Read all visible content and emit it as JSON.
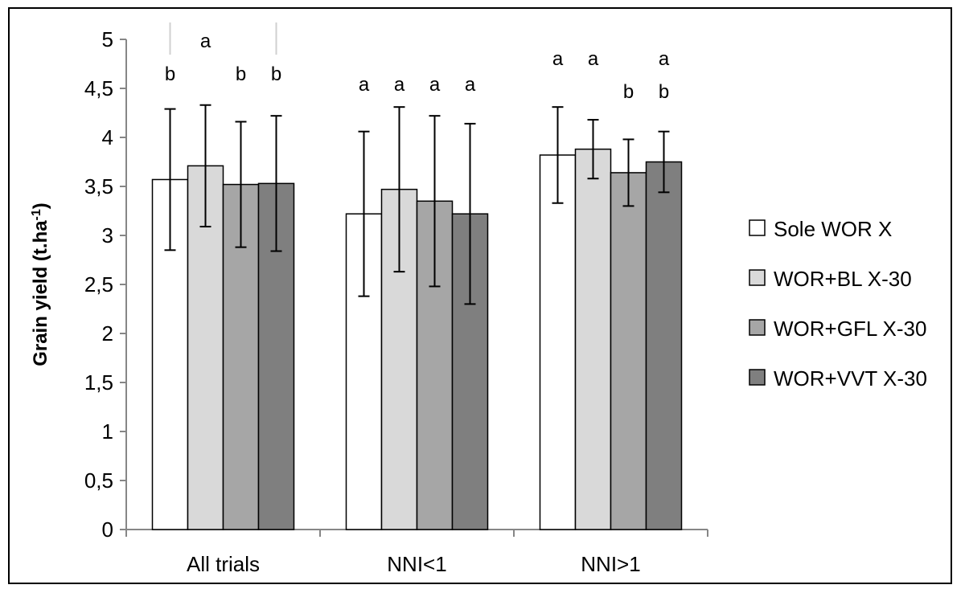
{
  "chart_data": {
    "type": "bar",
    "title": "",
    "xlabel": "",
    "ylabel": "Grain yield (t.ha",
    "ylabel_superscript": "-1",
    "ylabel_suffix": ")",
    "ylim": [
      0,
      5
    ],
    "yticks": [
      {
        "value": 0,
        "label": "0"
      },
      {
        "value": 0.5,
        "label": "0,5"
      },
      {
        "value": 1,
        "label": "1"
      },
      {
        "value": 1.5,
        "label": "1,5"
      },
      {
        "value": 2,
        "label": "2"
      },
      {
        "value": 2.5,
        "label": "2,5"
      },
      {
        "value": 3,
        "label": "3"
      },
      {
        "value": 3.5,
        "label": "3,5"
      },
      {
        "value": 4,
        "label": "4"
      },
      {
        "value": 4.5,
        "label": "4,5"
      },
      {
        "value": 5,
        "label": "5"
      }
    ],
    "categories": [
      "All trials",
      "NNI<1",
      "NNI>1"
    ],
    "grid": false,
    "legend_position": "right",
    "series": [
      {
        "name": "Sole WOR X",
        "color": "#ffffff",
        "values": [
          3.57,
          3.22,
          3.82
        ],
        "error": [
          0.72,
          0.84,
          0.49
        ],
        "letters": [
          "b",
          "a",
          "a"
        ]
      },
      {
        "name": "WOR+BL X-30",
        "color": "#d9d9d9",
        "values": [
          3.71,
          3.47,
          3.88
        ],
        "error": [
          0.62,
          0.84,
          0.3
        ],
        "letters": [
          "a",
          "a",
          "a"
        ]
      },
      {
        "name": "WOR+GFL X-30",
        "color": "#a6a6a6",
        "values": [
          3.52,
          3.35,
          3.64
        ],
        "error": [
          0.64,
          0.87,
          0.34
        ],
        "letters": [
          "b",
          "a",
          "b"
        ]
      },
      {
        "name": "WOR+VVT X-30",
        "color": "#7f7f7f",
        "values": [
          3.53,
          3.22,
          3.75
        ],
        "error": [
          0.69,
          0.92,
          0.31
        ],
        "letters": [
          "b",
          "a",
          "a\nb"
        ]
      }
    ]
  }
}
